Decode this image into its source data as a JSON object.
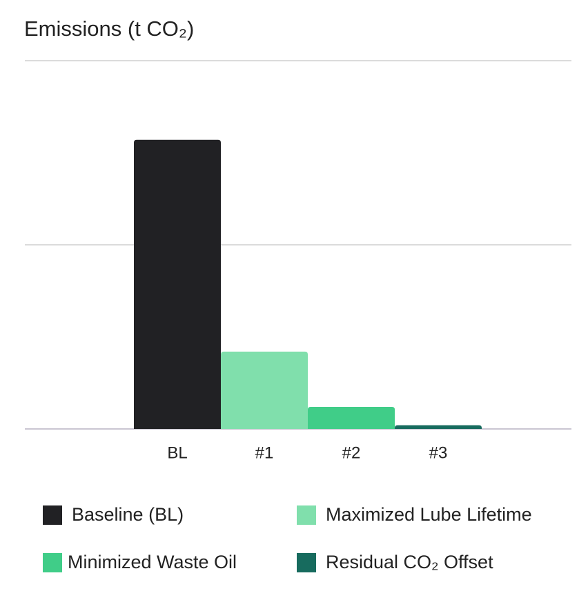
{
  "chart_data": {
    "type": "bar",
    "title": "Emissions (t CO₂)",
    "categories": [
      "BL",
      "#1",
      "#2",
      "#3"
    ],
    "values": [
      1.57,
      0.42,
      0.12,
      0.02
    ],
    "colors": [
      "#212124",
      "#80dfac",
      "#40cd88",
      "#176b5e"
    ],
    "legend": [
      "Baseline (BL)",
      "Maximized Lube Lifetime",
      "Minimized Waste Oil",
      "Residual CO₂ Offset"
    ],
    "ylim": [
      0,
      2
    ],
    "gridlines": [
      0,
      1,
      2
    ],
    "grid": true
  }
}
